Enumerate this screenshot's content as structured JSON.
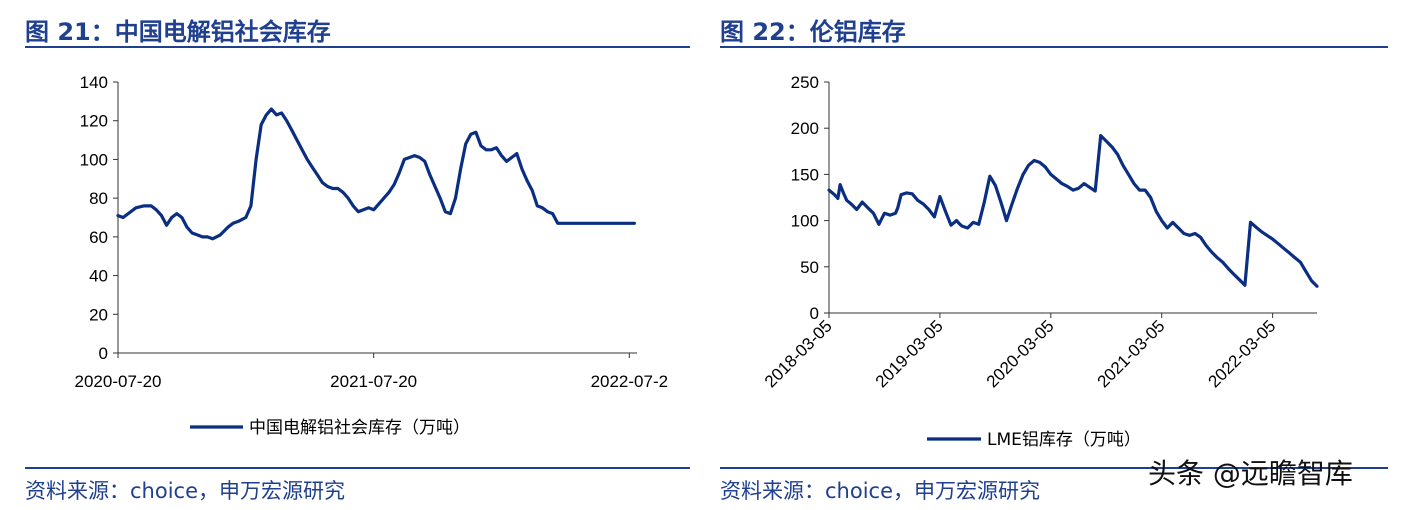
{
  "figures": [
    {
      "title": "图 21：中国电解铝社会库存",
      "source": "资料来源：choice，申万宏源研究"
    },
    {
      "title": "图 22：伦铝库存",
      "source": "资料来源：choice，申万宏源研究"
    }
  ],
  "watermark": "头条 @远瞻智库",
  "chart_data": [
    {
      "type": "line",
      "title": "",
      "xlabel": "",
      "ylabel": "",
      "ylim": [
        0,
        140
      ],
      "yticks": [
        0,
        20,
        40,
        60,
        80,
        100,
        120,
        140
      ],
      "xticks": [
        "2020-07-20",
        "2021-07-20",
        "2022-07-2"
      ],
      "xrange": [
        0,
        2.03
      ],
      "legend_position": "bottom",
      "grid": false,
      "series": [
        {
          "name": "中国电解铝社会库存（万吨）",
          "color": "#0a2e82",
          "x": [
            0,
            0.02,
            0.04,
            0.07,
            0.1,
            0.13,
            0.15,
            0.17,
            0.19,
            0.21,
            0.23,
            0.25,
            0.27,
            0.29,
            0.31,
            0.33,
            0.35,
            0.37,
            0.4,
            0.43,
            0.45,
            0.47,
            0.5,
            0.52,
            0.54,
            0.56,
            0.58,
            0.6,
            0.62,
            0.64,
            0.66,
            0.68,
            0.7,
            0.72,
            0.74,
            0.76,
            0.78,
            0.8,
            0.82,
            0.84,
            0.86,
            0.88,
            0.9,
            0.92,
            0.94,
            0.96,
            0.98,
            1.0,
            1.02,
            1.04,
            1.06,
            1.08,
            1.1,
            1.12,
            1.14,
            1.16,
            1.18,
            1.2,
            1.22,
            1.24,
            1.26,
            1.28,
            1.3,
            1.32,
            1.34,
            1.36,
            1.38,
            1.4,
            1.42,
            1.44,
            1.46,
            1.48,
            1.5,
            1.52,
            1.54,
            1.56,
            1.58,
            1.6,
            1.62,
            1.64,
            1.66,
            1.68,
            1.7,
            1.72,
            1.74,
            1.76,
            1.78,
            1.8,
            1.82,
            1.84,
            1.86,
            1.88,
            1.9,
            1.92,
            1.94,
            1.96,
            1.98,
            2.0,
            2.02
          ],
          "values": [
            71,
            70,
            72,
            75,
            76,
            76,
            74,
            71,
            66,
            70,
            72,
            70,
            65,
            62,
            61,
            60,
            60,
            59,
            61,
            65,
            67,
            68,
            70,
            76,
            100,
            118,
            123,
            126,
            123,
            124,
            120,
            115,
            110,
            105,
            100,
            96,
            92,
            88,
            86,
            85,
            85,
            83,
            80,
            76,
            73,
            74,
            75,
            74,
            77,
            80,
            83,
            87,
            93,
            100,
            101,
            102,
            101,
            99,
            92,
            86,
            80,
            73,
            72,
            80,
            95,
            108,
            113,
            114,
            107,
            105,
            105,
            106,
            102,
            99,
            101,
            103,
            95,
            89,
            84,
            76,
            75,
            73,
            72,
            67,
            67,
            67,
            67,
            67,
            67,
            67,
            67,
            67,
            67,
            67,
            67,
            67,
            67,
            67,
            67
          ]
        }
      ]
    },
    {
      "type": "line",
      "title": "",
      "xlabel": "",
      "ylabel": "",
      "ylim": [
        0,
        250
      ],
      "yticks": [
        0,
        50,
        100,
        150,
        200,
        250
      ],
      "xticks": [
        "2018-03-05",
        "2019-03-05",
        "2020-03-05",
        "2021-03-05",
        "2022-03-05"
      ],
      "xrange": [
        0,
        4.4
      ],
      "legend_position": "bottom",
      "grid": false,
      "series": [
        {
          "name": "LME铝库存（万吨）",
          "color": "#0a2e82",
          "x": [
            0,
            0.05,
            0.08,
            0.1,
            0.13,
            0.16,
            0.2,
            0.25,
            0.3,
            0.35,
            0.4,
            0.45,
            0.5,
            0.55,
            0.6,
            0.62,
            0.65,
            0.7,
            0.75,
            0.8,
            0.85,
            0.9,
            0.95,
            1.0,
            1.05,
            1.1,
            1.15,
            1.18,
            1.2,
            1.25,
            1.3,
            1.35,
            1.4,
            1.45,
            1.5,
            1.55,
            1.6,
            1.65,
            1.7,
            1.75,
            1.8,
            1.85,
            1.9,
            1.95,
            2.0,
            2.05,
            2.1,
            2.15,
            2.2,
            2.25,
            2.3,
            2.35,
            2.4,
            2.45,
            2.5,
            2.55,
            2.6,
            2.65,
            2.7,
            2.75,
            2.8,
            2.85,
            2.9,
            2.95,
            2.98,
            3.0,
            3.05,
            3.1,
            3.15,
            3.2,
            3.25,
            3.3,
            3.35,
            3.4,
            3.45,
            3.5,
            3.55,
            3.6,
            3.65,
            3.7,
            3.75,
            3.8,
            3.85,
            3.9,
            3.95,
            4.0,
            4.05,
            4.1,
            4.15,
            4.2,
            4.25,
            4.3,
            4.35,
            4.4
          ],
          "values": [
            133,
            128,
            124,
            139,
            130,
            122,
            118,
            112,
            120,
            114,
            108,
            96,
            108,
            106,
            108,
            114,
            128,
            130,
            129,
            122,
            118,
            112,
            104,
            126,
            110,
            95,
            100,
            96,
            94,
            92,
            98,
            96,
            120,
            148,
            138,
            120,
            100,
            118,
            135,
            150,
            160,
            165,
            163,
            158,
            150,
            145,
            140,
            137,
            133,
            135,
            140,
            136,
            132,
            192,
            186,
            180,
            172,
            160,
            150,
            140,
            133,
            133,
            125,
            110,
            104,
            100,
            92,
            98,
            92,
            86,
            84,
            86,
            82,
            73,
            66,
            60,
            55,
            48,
            42,
            36,
            30,
            98,
            93,
            88,
            84,
            80,
            75,
            70,
            65,
            60,
            55,
            45,
            35,
            29
          ]
        }
      ]
    }
  ]
}
